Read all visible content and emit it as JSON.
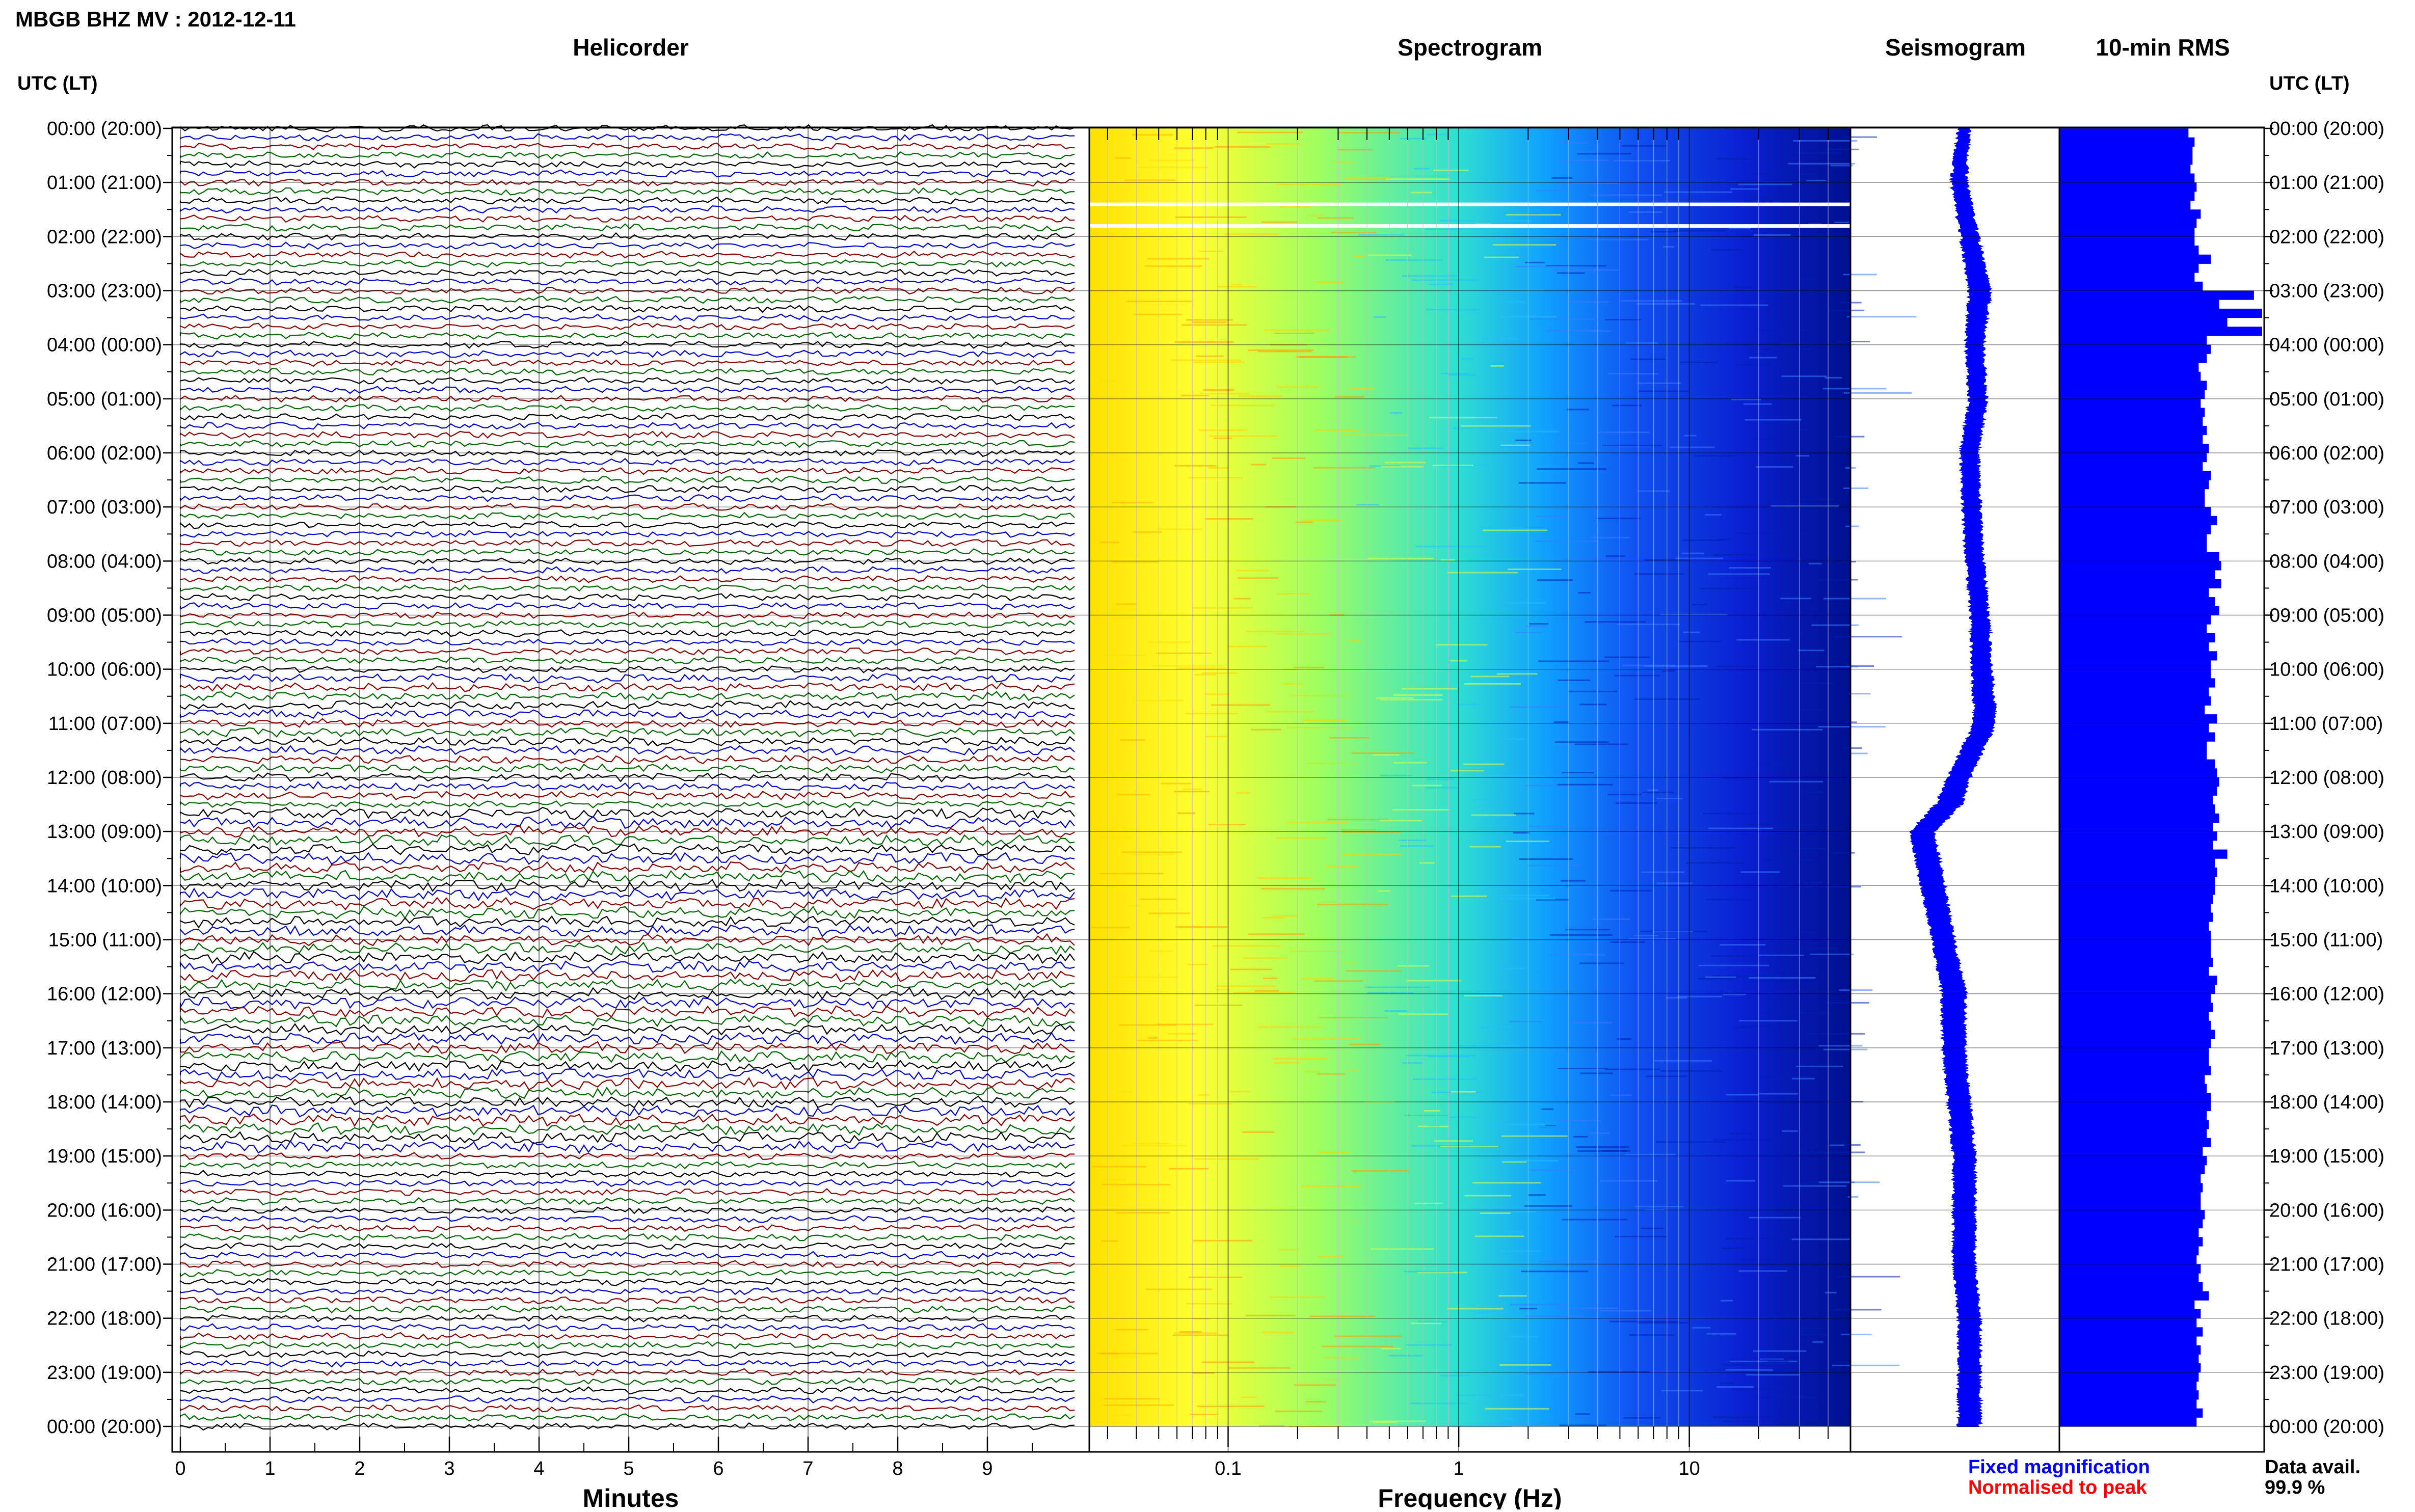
{
  "header": {
    "station_title": "MBGB BHZ MV : 2012-12-11",
    "time_axis_label": "UTC (LT)"
  },
  "panels": {
    "helicorder_title": "Helicorder",
    "spectrogram_title": "Spectrogram",
    "seismogram_title": "Seismogram",
    "rms_title": "10-min RMS"
  },
  "time_labels": [
    "00:00 (20:00)",
    "01:00 (21:00)",
    "02:00 (22:00)",
    "03:00 (23:00)",
    "04:00 (00:00)",
    "05:00 (01:00)",
    "06:00 (02:00)",
    "07:00 (03:00)",
    "08:00 (04:00)",
    "09:00 (05:00)",
    "10:00 (06:00)",
    "11:00 (07:00)",
    "12:00 (08:00)",
    "13:00 (09:00)",
    "14:00 (10:00)",
    "15:00 (11:00)",
    "16:00 (12:00)",
    "17:00 (13:00)",
    "18:00 (14:00)",
    "19:00 (15:00)",
    "20:00 (16:00)",
    "21:00 (17:00)",
    "22:00 (18:00)",
    "23:00 (19:00)",
    "00:00 (20:00)"
  ],
  "legend": {
    "fixed_label": "Fixed magnification",
    "normalised_label": "Normalised to peak",
    "fixed_color": "#0000ff",
    "normalised_color": "#ff0000",
    "data_avail_label": "Data avail.",
    "data_avail_value": "99.9 %"
  },
  "chart_data": [
    {
      "type": "line",
      "name": "helicorder",
      "title": "Helicorder",
      "xlabel": "Minutes",
      "ylabel": "UTC (LT)",
      "x_ticks": [
        "0",
        "1",
        "2",
        "3",
        "4",
        "5",
        "6",
        "7",
        "8",
        "9"
      ],
      "xlim": [
        0,
        10
      ],
      "ylim_hours": [
        0,
        24
      ],
      "rows_per_hour": 6,
      "trace_colors": [
        "#000000",
        "#0000cc",
        "#880000",
        "#006600"
      ],
      "grid": true
    },
    {
      "type": "heatmap",
      "name": "spectrogram",
      "title": "Spectrogram",
      "xlabel": "Frequency (Hz)",
      "x_scale": "log",
      "xlim": [
        0.025,
        50
      ],
      "x_ticks": [
        "0.1",
        "1",
        "10"
      ],
      "ylim_hours": [
        0,
        24
      ],
      "data_gap_hours": [
        1.4,
        1.8
      ],
      "colormap": [
        "#ffe000",
        "#ffff30",
        "#a0ff60",
        "#30e0d0",
        "#10a0ff",
        "#1050f0",
        "#0a20d0",
        "#001090"
      ]
    },
    {
      "type": "line",
      "name": "seismogram",
      "title": "Seismogram",
      "color": "#0000ff",
      "hours": [
        0,
        1,
        2,
        3,
        4,
        5,
        6,
        7,
        8,
        9,
        10,
        11,
        12,
        12.5,
        13,
        14,
        15,
        16,
        17,
        18,
        19,
        20,
        21,
        22,
        23,
        24
      ],
      "offset": [
        0.05,
        0.0,
        0.1,
        0.2,
        0.15,
        0.18,
        0.1,
        0.12,
        0.15,
        0.2,
        0.22,
        0.25,
        0.0,
        -0.1,
        -0.35,
        -0.25,
        -0.15,
        -0.05,
        -0.05,
        0.0,
        0.05,
        0.05,
        0.05,
        0.1,
        0.1,
        0.1
      ],
      "amplitude": [
        0.05,
        0.07,
        0.08,
        0.1,
        0.08,
        0.08,
        0.08,
        0.08,
        0.08,
        0.08,
        0.09,
        0.1,
        0.1,
        0.12,
        0.11,
        0.11,
        0.1,
        0.11,
        0.1,
        0.1,
        0.1,
        0.1,
        0.1,
        0.1,
        0.1,
        0.1
      ],
      "xlim": [
        -1,
        1
      ]
    },
    {
      "type": "bar",
      "name": "rms",
      "title": "10-min RMS",
      "color": "#0000ff",
      "orientation": "horizontal",
      "bin_minutes": 10,
      "xlim": [
        0,
        1
      ],
      "values": [
        0.63,
        0.66,
        0.65,
        0.65,
        0.64,
        0.66,
        0.67,
        0.66,
        0.64,
        0.69,
        0.67,
        0.66,
        0.66,
        0.68,
        0.74,
        0.68,
        0.66,
        0.7,
        0.95,
        0.78,
        0.99,
        0.82,
        0.99,
        0.72,
        0.74,
        0.72,
        0.68,
        0.69,
        0.72,
        0.71,
        0.69,
        0.71,
        0.7,
        0.72,
        0.7,
        0.73,
        0.72,
        0.7,
        0.74,
        0.73,
        0.71,
        0.71,
        0.74,
        0.77,
        0.74,
        0.72,
        0.72,
        0.78,
        0.79,
        0.76,
        0.79,
        0.73,
        0.76,
        0.78,
        0.74,
        0.72,
        0.76,
        0.73,
        0.77,
        0.74,
        0.74,
        0.76,
        0.73,
        0.74,
        0.71,
        0.77,
        0.73,
        0.76,
        0.72,
        0.72,
        0.76,
        0.77,
        0.78,
        0.77,
        0.75,
        0.76,
        0.78,
        0.75,
        0.77,
        0.75,
        0.82,
        0.76,
        0.77,
        0.76,
        0.76,
        0.75,
        0.74,
        0.75,
        0.73,
        0.74,
        0.74,
        0.74,
        0.75,
        0.73,
        0.77,
        0.76,
        0.74,
        0.75,
        0.73,
        0.74,
        0.76,
        0.74,
        0.73,
        0.73,
        0.74,
        0.71,
        0.72,
        0.74,
        0.74,
        0.72,
        0.73,
        0.72,
        0.74,
        0.7,
        0.72,
        0.71,
        0.69,
        0.7,
        0.69,
        0.69,
        0.71,
        0.7,
        0.68,
        0.7,
        0.68,
        0.67,
        0.69,
        0.68,
        0.7,
        0.73,
        0.66,
        0.69,
        0.67,
        0.7,
        0.67,
        0.69,
        0.68,
        0.69,
        0.68,
        0.67,
        0.68,
        0.67,
        0.7,
        0.67
      ]
    }
  ]
}
